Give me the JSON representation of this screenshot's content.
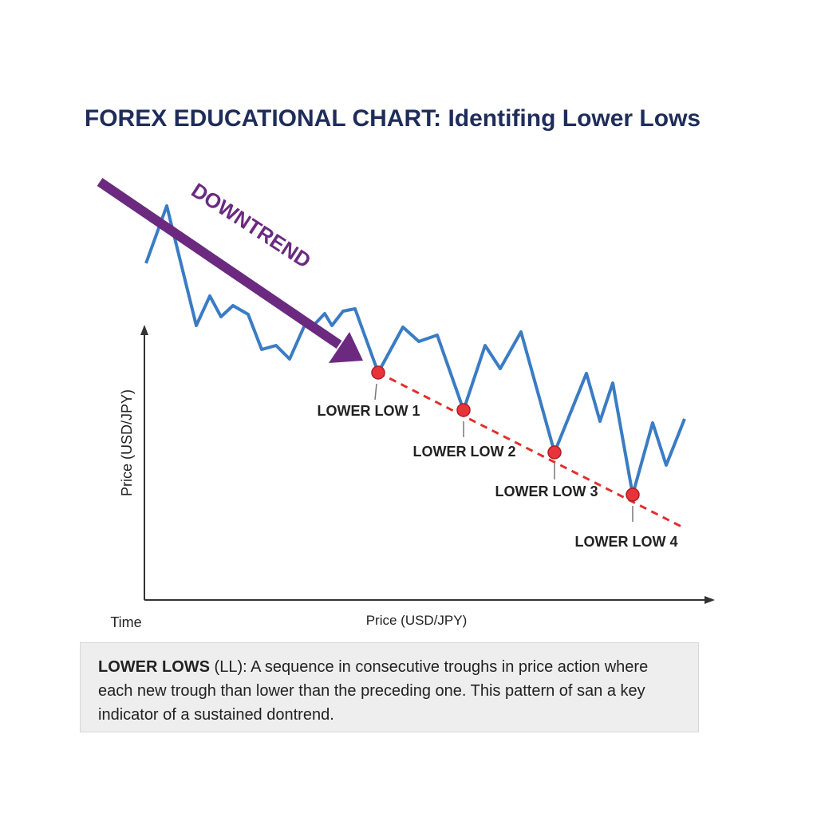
{
  "title": "FOREX EDUCATIONAL CHART: Identifing Lower Lows",
  "trend_label": "DOWNTREND",
  "y_axis_label": "Price (USD/JPY)",
  "x_axis_label": "Price (USD/JPY)",
  "time_label": "Time",
  "points": [
    {
      "label": "LOWER LOW 1"
    },
    {
      "label": "LOWER LOW 2"
    },
    {
      "label": "LOWER LOW 3"
    },
    {
      "label": "LOWER LOW 4"
    }
  ],
  "description": {
    "term": "LOWER LOWS",
    "text": " (LL): A sequence in consecutive troughs in price action where each new trough than lower than the preceding one. This pattern of san a key indicator of a sustained dontrend."
  }
}
